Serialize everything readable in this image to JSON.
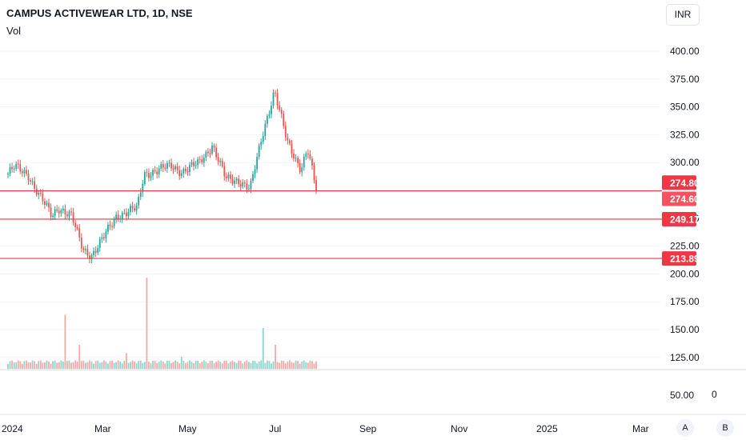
{
  "header": {
    "title": "CAMPUS ACTIVEWEAR LTD, 1D, NSE",
    "volume_label": "Vol",
    "currency": "INR"
  },
  "controls": {
    "auto_scale": "A",
    "log_scale": "B",
    "volume_pane_zero": "0"
  },
  "colors": {
    "up": "#26a69a",
    "down": "#ef5350",
    "level_line": "#f23645",
    "tag_bg": "#f23645",
    "tag_alt_bg": "#f7525f",
    "axis_text": "#131722",
    "grid": "#f0f3fa"
  },
  "chart_data": {
    "type": "candlestick",
    "title": "CAMPUS ACTIVEWEAR LTD, 1D, NSE",
    "price_axis_ticks": [
      "400.00",
      "375.00",
      "350.00",
      "325.00",
      "300.00",
      "250.00",
      "225.00",
      "200.00",
      "175.00",
      "150.00",
      "125.00"
    ],
    "volume_axis_ticks": [
      "50.00"
    ],
    "time_axis_ticks": [
      "2024",
      "Mar",
      "May",
      "Jul",
      "Sep",
      "Nov",
      "2025",
      "Mar"
    ],
    "price_range": [
      200,
      400
    ],
    "horizontal_levels": [
      {
        "label": "274.60",
        "price": 274.6
      },
      {
        "label": "249.17",
        "price": 249.17
      },
      {
        "label": "213.89",
        "price": 213.89
      }
    ],
    "price_tags": [
      {
        "label": "274.80",
        "price": 274.8
      },
      {
        "label": "274.60",
        "price": 274.6
      },
      {
        "label": "249.17",
        "price": 249.17
      },
      {
        "label": "213.89",
        "price": 213.89
      }
    ],
    "close_path": [
      {
        "date": "2024-01-01",
        "price": 290
      },
      {
        "date": "2024-01-08",
        "price": 296
      },
      {
        "date": "2024-01-22",
        "price": 289
      },
      {
        "date": "2024-02-01",
        "price": 272
      },
      {
        "date": "2024-02-15",
        "price": 252
      },
      {
        "date": "2024-02-22",
        "price": 260
      },
      {
        "date": "2024-03-06",
        "price": 252
      },
      {
        "date": "2024-03-18",
        "price": 222
      },
      {
        "date": "2024-03-27",
        "price": 217
      },
      {
        "date": "2024-04-08",
        "price": 232
      },
      {
        "date": "2024-04-22",
        "price": 253
      },
      {
        "date": "2024-05-01",
        "price": 255
      },
      {
        "date": "2024-05-13",
        "price": 259
      },
      {
        "date": "2024-05-20",
        "price": 290
      },
      {
        "date": "2024-06-03",
        "price": 293
      },
      {
        "date": "2024-06-17",
        "price": 297
      },
      {
        "date": "2024-06-28",
        "price": 292
      },
      {
        "date": "2024-07-15",
        "price": 299
      },
      {
        "date": "2024-07-29",
        "price": 316
      },
      {
        "date": "2024-08-12",
        "price": 285
      },
      {
        "date": "2024-08-26",
        "price": 284
      },
      {
        "date": "2024-09-06",
        "price": 276
      },
      {
        "date": "2024-09-20",
        "price": 330
      },
      {
        "date": "2024-10-01",
        "price": 365
      },
      {
        "date": "2024-10-14",
        "price": 318
      },
      {
        "date": "2024-10-28",
        "price": 295
      },
      {
        "date": "2024-11-04",
        "price": 312
      },
      {
        "date": "2024-11-13",
        "price": 274.6
      }
    ],
    "volume_spikes": [
      {
        "date": "2024-02-29",
        "relative_volume": 0.45
      },
      {
        "date": "2024-03-15",
        "relative_volume": 0.2
      },
      {
        "date": "2024-05-01",
        "relative_volume": 0.13
      },
      {
        "date": "2024-05-22",
        "relative_volume": 0.76
      },
      {
        "date": "2024-06-28",
        "relative_volume": 0.1
      },
      {
        "date": "2024-09-20",
        "relative_volume": 0.34
      },
      {
        "date": "2024-10-01",
        "relative_volume": 0.2
      }
    ],
    "grid": false,
    "legend": "none"
  }
}
